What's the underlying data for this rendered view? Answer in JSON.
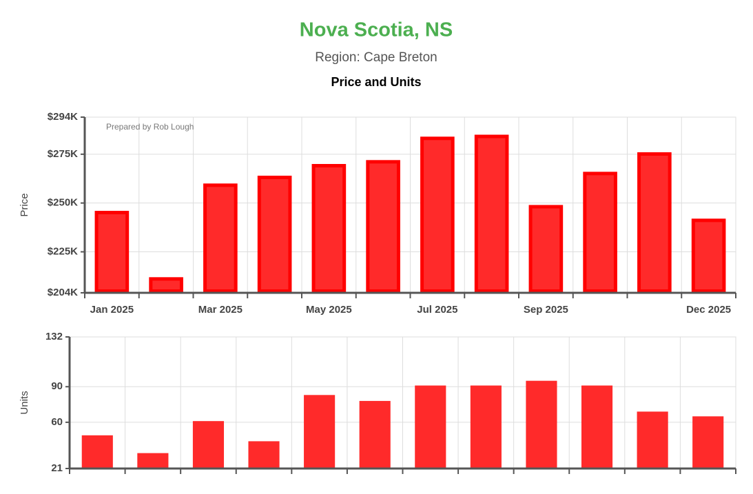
{
  "header": {
    "title": "Nova Scotia, NS",
    "subtitle": "Region: Cape Breton",
    "heading": "Price and Units"
  },
  "chart_data": [
    {
      "type": "bar",
      "y_label": "Price",
      "annotation": "Prepared by Rob Lough",
      "categories": [
        "Jan 2025",
        null,
        "Mar 2025",
        null,
        "May 2025",
        null,
        "Jul 2025",
        null,
        "Sep 2025",
        null,
        null,
        "Dec 2025"
      ],
      "values": [
        246000,
        212000,
        260000,
        264000,
        270000,
        272000,
        284000,
        285000,
        249000,
        266000,
        276000,
        242000
      ],
      "color": "#ff2a2a",
      "border_color": "#ff0000",
      "ylim": [
        204000,
        294000
      ],
      "yticks": [
        {
          "value": 204000,
          "label": "$204K"
        },
        {
          "value": 225000,
          "label": "$225K"
        },
        {
          "value": 250000,
          "label": "$250K"
        },
        {
          "value": 275000,
          "label": "$275K"
        },
        {
          "value": 294000,
          "label": "$294K"
        }
      ],
      "grid": true
    },
    {
      "type": "bar",
      "y_label": "Units",
      "values": [
        49,
        34,
        61,
        44,
        83,
        78,
        91,
        91,
        95,
        91,
        69,
        65
      ],
      "color": "#ff2a2a",
      "ylim": [
        21,
        132
      ],
      "yticks": [
        21,
        60,
        90,
        132
      ],
      "grid": true
    }
  ]
}
